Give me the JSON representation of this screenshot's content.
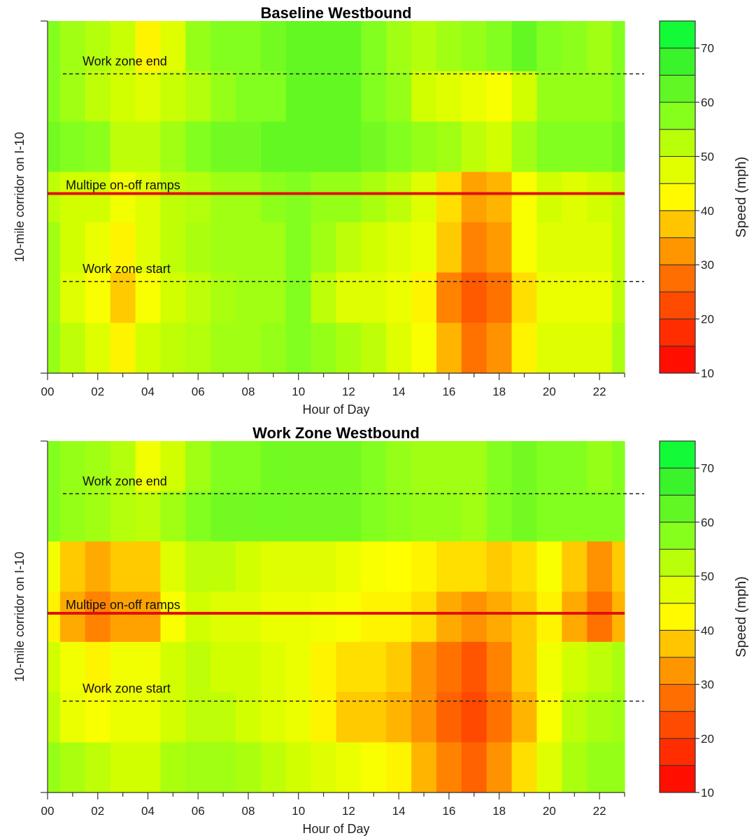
{
  "chart_data": [
    {
      "type": "heatmap",
      "title": "Baseline Westbound",
      "xlabel": "Hour of Day",
      "ylabel": "10-mile corridor on I-10",
      "x_ticks": [
        "00",
        "02",
        "04",
        "06",
        "08",
        "10",
        "12",
        "14",
        "16",
        "18",
        "20",
        "22"
      ],
      "colorbar": {
        "label": "Speed (mph)",
        "ticks": [
          "10",
          "20",
          "30",
          "40",
          "50",
          "60",
          "70"
        ],
        "range": [
          10,
          75
        ]
      },
      "annotations": [
        {
          "text": "Work zone end",
          "line": "dashed",
          "position_mi": 8.5
        },
        {
          "text": "Multipe on-off ramps",
          "line": "solid-red",
          "position_mi": 5.1
        },
        {
          "text": "Work zone start",
          "line": "dashed",
          "position_mi": 2.6
        }
      ],
      "z_speed_mph": [
        [
          58,
          55,
          53,
          51,
          42,
          48,
          56,
          58,
          58,
          60,
          62,
          62,
          62,
          58,
          55,
          53,
          55,
          56,
          58,
          62,
          58,
          57,
          55,
          58
        ],
        [
          58,
          55,
          52,
          50,
          48,
          51,
          53,
          56,
          58,
          58,
          62,
          62,
          62,
          58,
          56,
          50,
          48,
          46,
          44,
          50,
          56,
          56,
          56,
          58
        ],
        [
          60,
          58,
          57,
          52,
          52,
          55,
          58,
          60,
          60,
          62,
          62,
          62,
          62,
          60,
          58,
          56,
          55,
          52,
          50,
          55,
          58,
          58,
          58,
          60
        ],
        [
          52,
          50,
          50,
          45,
          48,
          52,
          53,
          55,
          55,
          57,
          58,
          56,
          56,
          54,
          52,
          48,
          40,
          34,
          36,
          44,
          50,
          48,
          50,
          52
        ],
        [
          55,
          50,
          46,
          42,
          48,
          52,
          54,
          55,
          55,
          55,
          58,
          55,
          52,
          50,
          48,
          46,
          38,
          30,
          33,
          44,
          48,
          48,
          48,
          52
        ],
        [
          55,
          48,
          44,
          38,
          44,
          50,
          52,
          54,
          55,
          55,
          58,
          52,
          48,
          48,
          46,
          42,
          30,
          25,
          28,
          40,
          46,
          46,
          46,
          52
        ],
        [
          56,
          52,
          48,
          42,
          50,
          52,
          53,
          55,
          55,
          56,
          58,
          56,
          54,
          52,
          48,
          44,
          36,
          28,
          32,
          42,
          48,
          48,
          48,
          54
        ]
      ]
    },
    {
      "type": "heatmap",
      "title": "Work Zone Westbound",
      "xlabel": "Hour of Day",
      "ylabel": "10-mile corridor on I-10",
      "x_ticks": [
        "00",
        "02",
        "04",
        "06",
        "08",
        "10",
        "12",
        "14",
        "16",
        "18",
        "20",
        "22"
      ],
      "colorbar": {
        "label": "Speed (mph)",
        "ticks": [
          "10",
          "20",
          "30",
          "40",
          "50",
          "60",
          "70"
        ],
        "range": [
          10,
          75
        ]
      },
      "annotations": [
        {
          "text": "Work zone end",
          "line": "dashed",
          "position_mi": 8.5
        },
        {
          "text": "Multipe on-off ramps",
          "line": "solid-red",
          "position_mi": 5.1
        },
        {
          "text": "Work zone start",
          "line": "dashed",
          "position_mi": 2.6
        }
      ],
      "z_speed_mph": [
        [
          58,
          56,
          55,
          53,
          45,
          50,
          55,
          58,
          58,
          60,
          60,
          60,
          60,
          58,
          56,
          55,
          55,
          55,
          58,
          60,
          58,
          58,
          56,
          58
        ],
        [
          58,
          56,
          55,
          53,
          52,
          55,
          58,
          60,
          60,
          60,
          60,
          60,
          60,
          58,
          57,
          56,
          56,
          55,
          58,
          60,
          58,
          58,
          58,
          58
        ],
        [
          45,
          38,
          35,
          38,
          38,
          48,
          52,
          52,
          50,
          48,
          48,
          48,
          46,
          44,
          43,
          42,
          40,
          40,
          38,
          40,
          44,
          38,
          32,
          38
        ],
        [
          42,
          35,
          30,
          34,
          34,
          44,
          50,
          48,
          48,
          46,
          46,
          45,
          44,
          42,
          42,
          40,
          35,
          32,
          35,
          38,
          42,
          35,
          28,
          36
        ],
        [
          50,
          45,
          42,
          45,
          45,
          50,
          52,
          50,
          50,
          48,
          46,
          42,
          40,
          40,
          38,
          32,
          28,
          24,
          30,
          38,
          45,
          50,
          52,
          54
        ],
        [
          52,
          46,
          44,
          46,
          46,
          50,
          52,
          52,
          50,
          48,
          46,
          42,
          38,
          38,
          36,
          32,
          26,
          22,
          28,
          36,
          44,
          52,
          54,
          55
        ],
        [
          56,
          54,
          52,
          50,
          50,
          54,
          55,
          55,
          54,
          52,
          50,
          48,
          46,
          44,
          42,
          36,
          30,
          26,
          32,
          40,
          48,
          54,
          56,
          56
        ]
      ]
    }
  ]
}
